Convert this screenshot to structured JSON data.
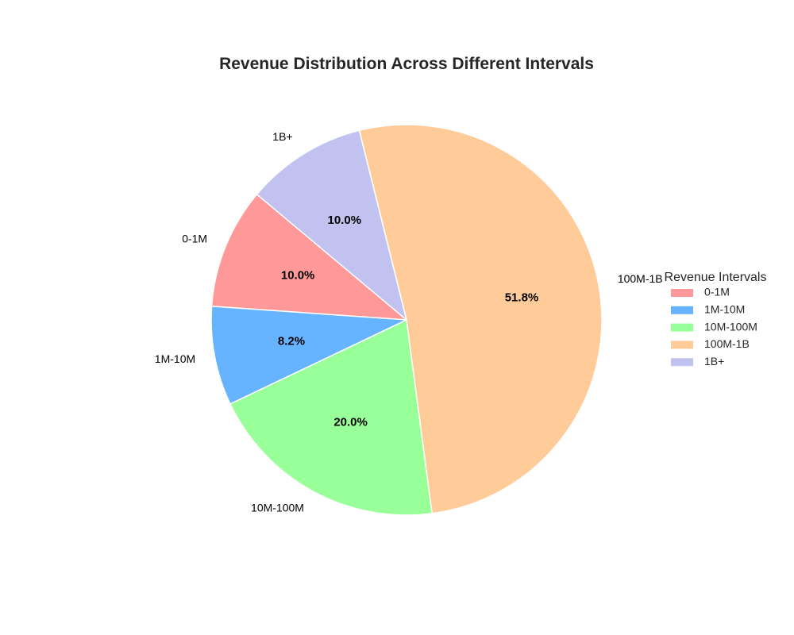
{
  "chart_data": {
    "type": "pie",
    "title": "Revenue Distribution Across Different Intervals",
    "categories": [
      "0-1M",
      "1M-10M",
      "10M-100M",
      "100M-1B",
      "1B+"
    ],
    "values": [
      10.0,
      8.2,
      20.0,
      51.8,
      10.0
    ],
    "percent_labels": [
      "10.0%",
      "8.2%",
      "20.0%",
      "51.8%",
      "10.0%"
    ],
    "colors": [
      "#ff9999",
      "#66b3ff",
      "#99ff99",
      "#ffcc99",
      "#c2c2f0"
    ],
    "legend": {
      "title": "Revenue Intervals",
      "placement": "right"
    },
    "start_angle_deg": 140,
    "direction": "counterclockwise",
    "grid": false
  }
}
